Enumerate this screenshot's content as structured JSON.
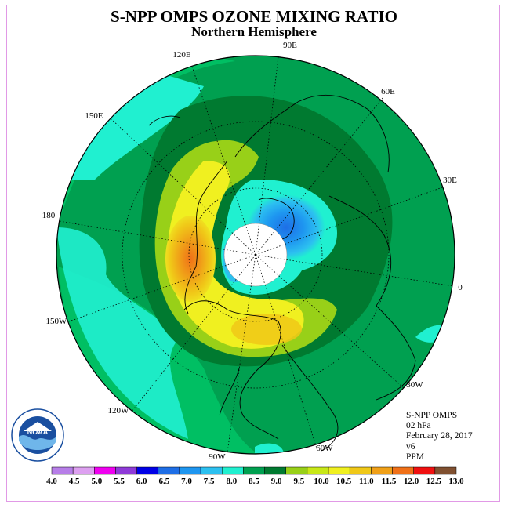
{
  "title": "S-NPP OMPS OZONE MIXING RATIO",
  "subtitle": "Northern Hemisphere",
  "longitude_labels": [
    "90E",
    "60E",
    "30E",
    "0",
    "30W",
    "60W",
    "90W",
    "120W",
    "150W",
    "180",
    "150E",
    "120E"
  ],
  "info": {
    "instrument": "S-NPP OMPS",
    "level": "02 hPa",
    "date": "February 28, 2017",
    "version": "v6",
    "units": "PPM"
  },
  "colorbar": {
    "ticks": [
      "4.0",
      "4.5",
      "5.0",
      "5.5",
      "6.0",
      "6.5",
      "7.0",
      "7.5",
      "8.0",
      "8.5",
      "9.0",
      "9.5",
      "10.0",
      "10.5",
      "11.0",
      "11.5",
      "12.0",
      "12.5",
      "13.0"
    ],
    "colors": [
      "#b77ee8",
      "#dda0f0",
      "#f000f0",
      "#8f3ad8",
      "#0000e6",
      "#1e6ee6",
      "#1e96f0",
      "#2cc0f0",
      "#20f0d0",
      "#00a050",
      "#007a30",
      "#98d018",
      "#c8e818",
      "#f0f020",
      "#f0c818",
      "#f0a018",
      "#f07018",
      "#f01010",
      "#805030"
    ]
  },
  "colors": {
    "missing": "#ffffff",
    "grid": "#000000",
    "frame": "#e199e6"
  },
  "logo_text": "NOAA"
}
